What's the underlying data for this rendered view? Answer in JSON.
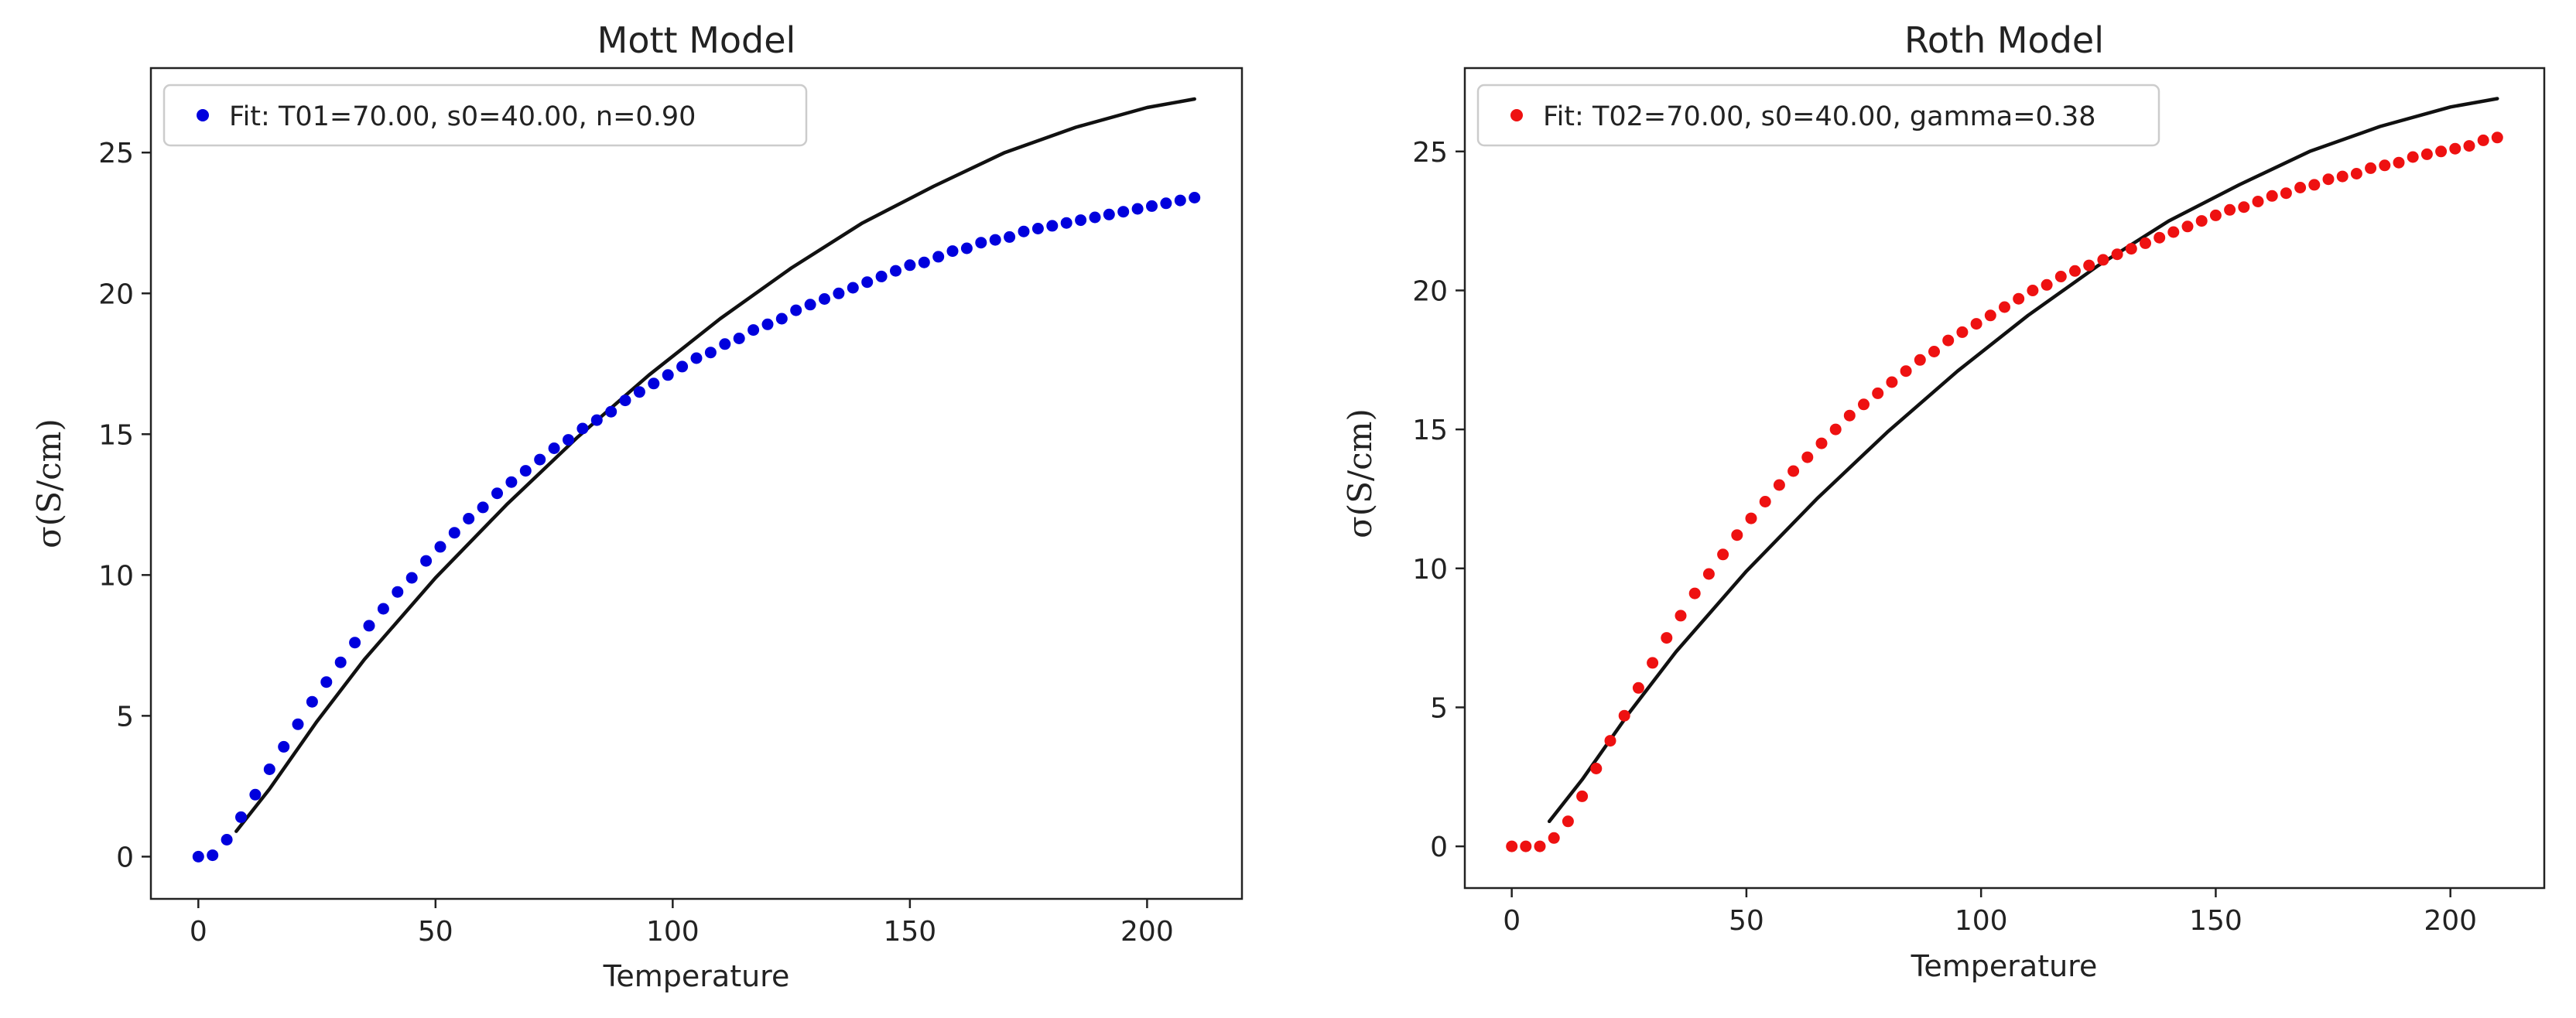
{
  "chart_data": [
    {
      "type": "scatter",
      "title": "Mott Model",
      "xlabel": "Temperature",
      "ylabel": "σ(S/cm)",
      "xlim": [
        -10,
        220
      ],
      "ylim": [
        -1.5,
        28
      ],
      "xticks": [
        0,
        50,
        100,
        150,
        200
      ],
      "yticks": [
        0,
        5,
        10,
        15,
        20,
        25
      ],
      "grid": false,
      "legend_position": "upper-left",
      "series": [
        {
          "name": "Fit: T01=70.00, s0=40.00, n=0.90",
          "kind": "scatter",
          "color": "#0000dd",
          "x": [
            0,
            3,
            6,
            9,
            12,
            15,
            18,
            21,
            24,
            27,
            30,
            33,
            36,
            39,
            42,
            45,
            48,
            51,
            54,
            57,
            60,
            63,
            66,
            69,
            72,
            75,
            78,
            81,
            84,
            87,
            90,
            93,
            96,
            99,
            102,
            105,
            108,
            111,
            114,
            117,
            120,
            123,
            126,
            129,
            132,
            135,
            138,
            141,
            144,
            147,
            150,
            153,
            156,
            159,
            162,
            165,
            168,
            171,
            174,
            177,
            180,
            183,
            186,
            189,
            192,
            195,
            198,
            201,
            204,
            207,
            210
          ],
          "y": [
            0.0,
            0.05,
            0.6,
            1.4,
            2.2,
            3.1,
            3.9,
            4.7,
            5.5,
            6.2,
            6.9,
            7.6,
            8.2,
            8.8,
            9.4,
            9.9,
            10.5,
            11.0,
            11.5,
            12.0,
            12.4,
            12.9,
            13.3,
            13.7,
            14.1,
            14.5,
            14.8,
            15.2,
            15.5,
            15.8,
            16.2,
            16.5,
            16.8,
            17.1,
            17.4,
            17.7,
            17.9,
            18.2,
            18.4,
            18.7,
            18.9,
            19.1,
            19.4,
            19.6,
            19.8,
            20.0,
            20.2,
            20.4,
            20.6,
            20.8,
            21.0,
            21.1,
            21.3,
            21.5,
            21.6,
            21.8,
            21.9,
            22.0,
            22.2,
            22.3,
            22.4,
            22.5,
            22.6,
            22.7,
            22.8,
            22.9,
            23.0,
            23.1,
            23.2,
            23.3,
            23.4
          ]
        },
        {
          "name": "",
          "kind": "line",
          "color": "#111111",
          "x": [
            8,
            15,
            25,
            35,
            50,
            65,
            80,
            95,
            110,
            125,
            140,
            155,
            170,
            185,
            200,
            210
          ],
          "y": [
            0.9,
            2.4,
            4.8,
            7.0,
            9.9,
            12.5,
            14.9,
            17.1,
            19.1,
            20.9,
            22.5,
            23.8,
            25.0,
            25.9,
            26.6,
            26.9
          ]
        }
      ]
    },
    {
      "type": "scatter",
      "title": "Roth Model",
      "xlabel": "Temperature",
      "ylabel": "σ(S/cm)",
      "xlim": [
        -10,
        220
      ],
      "ylim": [
        -1.5,
        28
      ],
      "xticks": [
        0,
        50,
        100,
        150,
        200
      ],
      "yticks": [
        0,
        5,
        10,
        15,
        20,
        25
      ],
      "grid": false,
      "legend_position": "upper-left",
      "series": [
        {
          "name": "Fit: T02=70.00, s0=40.00, gamma=0.38",
          "kind": "scatter",
          "color": "#ee1111",
          "x": [
            0,
            3,
            6,
            9,
            12,
            15,
            18,
            21,
            24,
            27,
            30,
            33,
            36,
            39,
            42,
            45,
            48,
            51,
            54,
            57,
            60,
            63,
            66,
            69,
            72,
            75,
            78,
            81,
            84,
            87,
            90,
            93,
            96,
            99,
            102,
            105,
            108,
            111,
            114,
            117,
            120,
            123,
            126,
            129,
            132,
            135,
            138,
            141,
            144,
            147,
            150,
            153,
            156,
            159,
            162,
            165,
            168,
            171,
            174,
            177,
            180,
            183,
            186,
            189,
            192,
            195,
            198,
            201,
            204,
            207,
            210
          ],
          "y": [
            0.0,
            0.0,
            0.0,
            0.3,
            0.9,
            1.8,
            2.8,
            3.8,
            4.7,
            5.7,
            6.6,
            7.5,
            8.3,
            9.1,
            9.8,
            10.5,
            11.2,
            11.8,
            12.4,
            13.0,
            13.5,
            14.0,
            14.5,
            15.0,
            15.5,
            15.9,
            16.3,
            16.7,
            17.1,
            17.5,
            17.8,
            18.2,
            18.5,
            18.8,
            19.1,
            19.4,
            19.7,
            20.0,
            20.2,
            20.5,
            20.7,
            20.9,
            21.1,
            21.3,
            21.5,
            21.7,
            21.9,
            22.1,
            22.3,
            22.5,
            22.7,
            22.9,
            23.0,
            23.2,
            23.4,
            23.5,
            23.7,
            23.8,
            24.0,
            24.1,
            24.2,
            24.4,
            24.5,
            24.6,
            24.8,
            24.9,
            25.0,
            25.1,
            25.2,
            25.4,
            25.5
          ]
        },
        {
          "name": "",
          "kind": "line",
          "color": "#111111",
          "x": [
            8,
            15,
            25,
            35,
            50,
            65,
            80,
            95,
            110,
            125,
            140,
            155,
            170,
            185,
            200,
            210
          ],
          "y": [
            0.9,
            2.4,
            4.8,
            7.0,
            9.9,
            12.5,
            14.9,
            17.1,
            19.1,
            20.9,
            22.5,
            23.8,
            25.0,
            25.9,
            26.6,
            26.9
          ]
        }
      ]
    }
  ]
}
